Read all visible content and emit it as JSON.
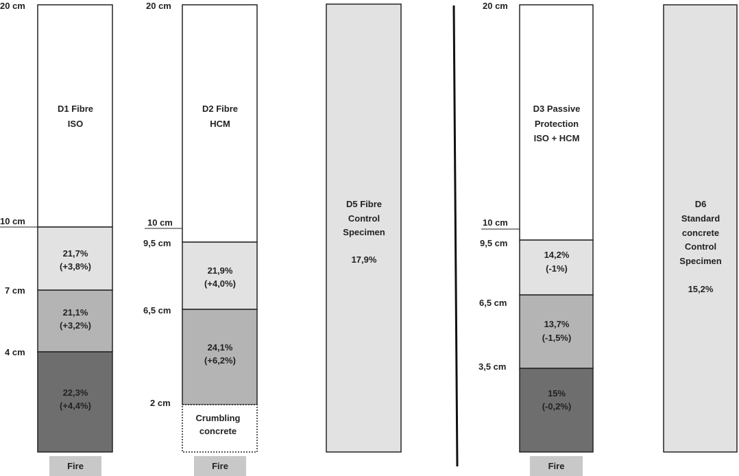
{
  "specimens": {
    "d1": {
      "title_line1": "D1 Fibre",
      "title_line2": "ISO",
      "top_label": "20 cm",
      "mid_label": "10 cm",
      "seg1": {
        "depth": "7 cm",
        "value": "21,7%",
        "delta": "(+3,8%)"
      },
      "seg2": {
        "depth": "4 cm",
        "value": "21,1%",
        "delta": "(+3,2%)"
      },
      "seg3": {
        "value": "22,3%",
        "delta": "(+4,4%)"
      }
    },
    "d2": {
      "title_line1": "D2 Fibre",
      "title_line2": "HCM",
      "top_label": "20 cm",
      "mid_label": "10 cm",
      "seg1": {
        "depth": "9,5 cm",
        "value": "21,9%",
        "delta": "(+4,0%)"
      },
      "seg2": {
        "depth": "6,5 cm",
        "value": "24,1%",
        "delta": "(+6,2%)"
      },
      "seg3": {
        "depth": "2 cm",
        "line1": "Crumbling",
        "line2": "concrete"
      }
    },
    "d5": {
      "line1": "D5  Fibre",
      "line2": "Control",
      "line3": "Specimen",
      "value": "17,9%"
    },
    "d3": {
      "title_line1": "D3 Passive",
      "title_line2": "Protection",
      "title_line3": "ISO + HCM",
      "top_label": "20 cm",
      "mid_label": "10 cm",
      "seg1": {
        "depth": "9,5 cm",
        "value": "14,2%",
        "delta": "(-1%)"
      },
      "seg2": {
        "depth": "6,5 cm",
        "value": "13,7%",
        "delta": "(-1,5%)"
      },
      "seg3": {
        "depth": "3,5 cm",
        "value": "15%",
        "delta": "(-0,2%)"
      }
    },
    "d6": {
      "line1": "D6",
      "line2": "Standard",
      "line3": "concrete",
      "line4": "Control",
      "line5": "Specimen",
      "value": "15,2%"
    }
  },
  "fire_label": "Fire",
  "colors": {
    "light": "#e2e2e2",
    "mid": "#b4b4b4",
    "dark": "#6e6e6e",
    "fire": "#c8c8c8",
    "border": "#222222"
  }
}
